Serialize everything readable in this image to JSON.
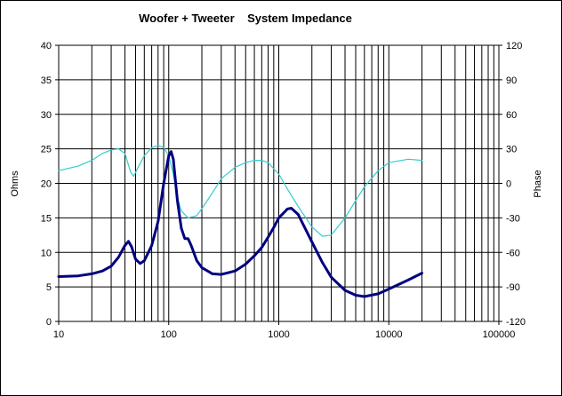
{
  "chart_data": {
    "type": "line",
    "title": "Woofer + Tweeter    System Impedance",
    "xlabel": "",
    "ylabel": "Ohms",
    "y2label": "Phase",
    "xscale": "log",
    "xlim": [
      10,
      100000
    ],
    "ylim": [
      0,
      40
    ],
    "y2lim": [
      -120,
      120
    ],
    "grid": true,
    "legend": "none",
    "x_ticks": [
      "10",
      "100",
      "1000",
      "10000",
      "100000"
    ],
    "y_ticks": [
      "0",
      "5",
      "10",
      "15",
      "20",
      "25",
      "30",
      "35",
      "40"
    ],
    "y2_ticks": [
      "-120",
      "-90",
      "-60",
      "-30",
      "0",
      "30",
      "60",
      "90",
      "120"
    ],
    "series": [
      {
        "axis": "left",
        "color": "#000080",
        "points": [
          [
            10,
            6.5
          ],
          [
            15,
            6.6
          ],
          [
            20,
            6.9
          ],
          [
            25,
            7.3
          ],
          [
            30,
            8.0
          ],
          [
            35,
            9.3
          ],
          [
            40,
            11.0
          ],
          [
            43,
            11.6
          ],
          [
            46,
            10.8
          ],
          [
            50,
            9.0
          ],
          [
            55,
            8.4
          ],
          [
            60,
            8.8
          ],
          [
            70,
            11.0
          ],
          [
            80,
            14.5
          ],
          [
            90,
            20.0
          ],
          [
            100,
            24.0
          ],
          [
            105,
            24.6
          ],
          [
            110,
            23.5
          ],
          [
            120,
            17.5
          ],
          [
            130,
            13.5
          ],
          [
            140,
            12.0
          ],
          [
            150,
            12.0
          ],
          [
            160,
            11.0
          ],
          [
            180,
            8.8
          ],
          [
            200,
            7.8
          ],
          [
            250,
            6.9
          ],
          [
            300,
            6.8
          ],
          [
            400,
            7.3
          ],
          [
            500,
            8.3
          ],
          [
            600,
            9.5
          ],
          [
            700,
            10.7
          ],
          [
            800,
            12.2
          ],
          [
            900,
            13.6
          ],
          [
            1000,
            15.0
          ],
          [
            1200,
            16.3
          ],
          [
            1300,
            16.4
          ],
          [
            1500,
            15.5
          ],
          [
            2000,
            11.5
          ],
          [
            2500,
            8.5
          ],
          [
            3000,
            6.4
          ],
          [
            4000,
            4.5
          ],
          [
            5000,
            3.8
          ],
          [
            6000,
            3.6
          ],
          [
            8000,
            4.0
          ],
          [
            10000,
            4.7
          ],
          [
            15000,
            6.0
          ],
          [
            20000,
            7.0
          ]
        ]
      },
      {
        "axis": "right",
        "color": "#33cccc",
        "points": [
          [
            10,
            11
          ],
          [
            15,
            15
          ],
          [
            20,
            20
          ],
          [
            25,
            26
          ],
          [
            30,
            29
          ],
          [
            35,
            30
          ],
          [
            40,
            26
          ],
          [
            45,
            10
          ],
          [
            48,
            6
          ],
          [
            52,
            13
          ],
          [
            60,
            24
          ],
          [
            70,
            31
          ],
          [
            80,
            33
          ],
          [
            90,
            31
          ],
          [
            100,
            24
          ],
          [
            110,
            8
          ],
          [
            120,
            -12
          ],
          [
            130,
            -24
          ],
          [
            150,
            -30
          ],
          [
            180,
            -28
          ],
          [
            200,
            -22
          ],
          [
            250,
            -8
          ],
          [
            300,
            4
          ],
          [
            400,
            14
          ],
          [
            500,
            18
          ],
          [
            600,
            20
          ],
          [
            700,
            20
          ],
          [
            800,
            18
          ],
          [
            1000,
            8
          ],
          [
            1200,
            -5
          ],
          [
            1500,
            -20
          ],
          [
            2000,
            -38
          ],
          [
            2500,
            -46
          ],
          [
            3000,
            -45
          ],
          [
            4000,
            -30
          ],
          [
            5000,
            -15
          ],
          [
            6000,
            -3
          ],
          [
            8000,
            11
          ],
          [
            10000,
            18
          ],
          [
            15000,
            21
          ],
          [
            20000,
            20
          ]
        ]
      }
    ]
  }
}
